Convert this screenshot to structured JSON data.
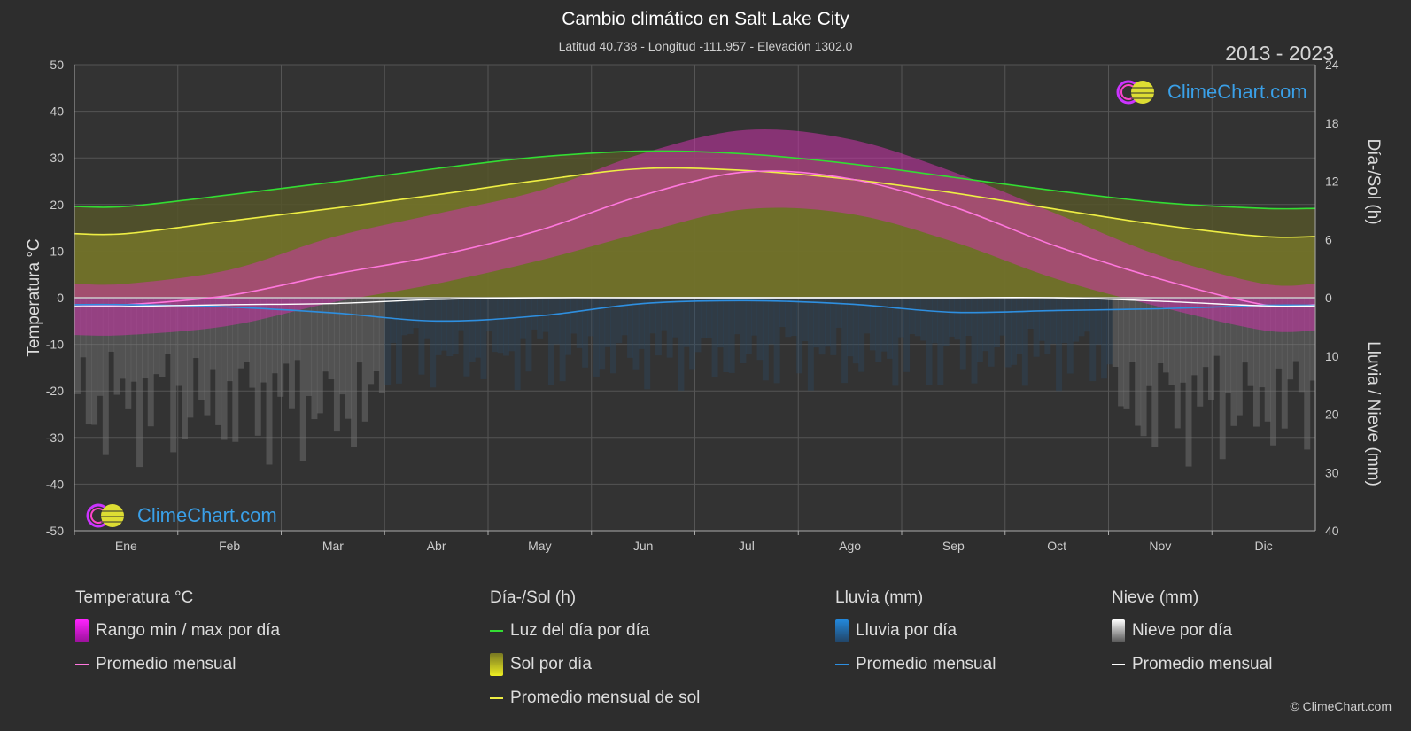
{
  "header": {
    "title": "Cambio climático en Salt Lake City",
    "subtitle": "Latitud 40.738 - Longitud -111.957 - Elevación 1302.0",
    "years": "2013 - 2023"
  },
  "logo_text": "ClimeChart.com",
  "copyright": "© ClimeChart.com",
  "colors": {
    "background": "#2d2d2d",
    "temp_range": "#cc22cc",
    "temp_avg": "#ff77dd",
    "daylight": "#33dd33",
    "sun_fill": "#aaaa22",
    "sun_avg": "#eeee44",
    "rain": "#2288dd",
    "rain_avg": "#2e8fe0",
    "snow": "#aaaaaa",
    "snow_avg": "#ffffff",
    "logo_text": "#3aa0e8"
  },
  "legend": {
    "temp": {
      "heading": "Temperatura °C",
      "range_label": "Rango min / max por día",
      "avg_label": "Promedio mensual"
    },
    "sun": {
      "heading": "Día-/Sol (h)",
      "daylight_label": "Luz del día por día",
      "sun_label": "Sol por día",
      "sun_avg_label": "Promedio mensual de sol"
    },
    "rain": {
      "heading": "Lluvia (mm)",
      "rain_label": "Lluvia por día",
      "avg_label": "Promedio mensual"
    },
    "snow": {
      "heading": "Nieve (mm)",
      "snow_label": "Nieve por día",
      "avg_label": "Promedio mensual"
    }
  },
  "chart_data": {
    "type": "line",
    "categories": [
      "Ene",
      "Feb",
      "Mar",
      "Abr",
      "May",
      "Jun",
      "Jul",
      "Ago",
      "Sep",
      "Oct",
      "Nov",
      "Dic"
    ],
    "ylabel_left": "Temperatura °C",
    "ylabel_right_top": "Día-/Sol (h)",
    "ylabel_right_bottom": "Lluvia / Nieve (mm)",
    "y_left_range": [
      -50,
      50
    ],
    "y_left_ticks": [
      50,
      40,
      30,
      20,
      10,
      0,
      -10,
      -20,
      -30,
      -40,
      -50
    ],
    "y_right_top_ticks": [
      24,
      18,
      12,
      6,
      0
    ],
    "y_right_bottom_ticks": [
      10,
      20,
      30,
      40
    ],
    "grid": true,
    "series": [
      {
        "name": "Luz del día por día",
        "unit": "h",
        "values": [
          9.4,
          10.6,
          11.9,
          13.3,
          14.5,
          15.1,
          14.8,
          13.8,
          12.4,
          11.0,
          9.8,
          9.2
        ]
      },
      {
        "name": "Promedio mensual de sol",
        "unit": "h",
        "values": [
          6.6,
          7.9,
          9.2,
          10.6,
          12.1,
          13.3,
          13.1,
          12.2,
          10.8,
          9.1,
          7.5,
          6.3
        ]
      },
      {
        "name": "Promedio mensual",
        "unit": "°C",
        "values": [
          -1.5,
          0.5,
          5.0,
          9.0,
          14.5,
          22.0,
          27.0,
          25.5,
          19.5,
          11.0,
          4.0,
          -1.5
        ]
      },
      {
        "name": "Lluvia promedio mensual",
        "unit": "mm",
        "values": [
          1.2,
          1.6,
          2.6,
          4.0,
          3.1,
          1.0,
          0.5,
          1.1,
          2.5,
          2.2,
          1.9,
          1.3
        ]
      },
      {
        "name": "Nieve promedio mensual",
        "unit": "mm",
        "values": [
          1.5,
          1.2,
          1.0,
          0.3,
          0.0,
          0.0,
          0.0,
          0.0,
          0.0,
          0.0,
          0.6,
          1.4
        ]
      }
    ],
    "temp_range_daily_approx": {
      "max": [
        3,
        6,
        13,
        18,
        23,
        31,
        36,
        34,
        27,
        18,
        9,
        3
      ],
      "min": [
        -8,
        -6,
        -1,
        3,
        8,
        14,
        19,
        18,
        12,
        4,
        -2,
        -7
      ]
    }
  }
}
